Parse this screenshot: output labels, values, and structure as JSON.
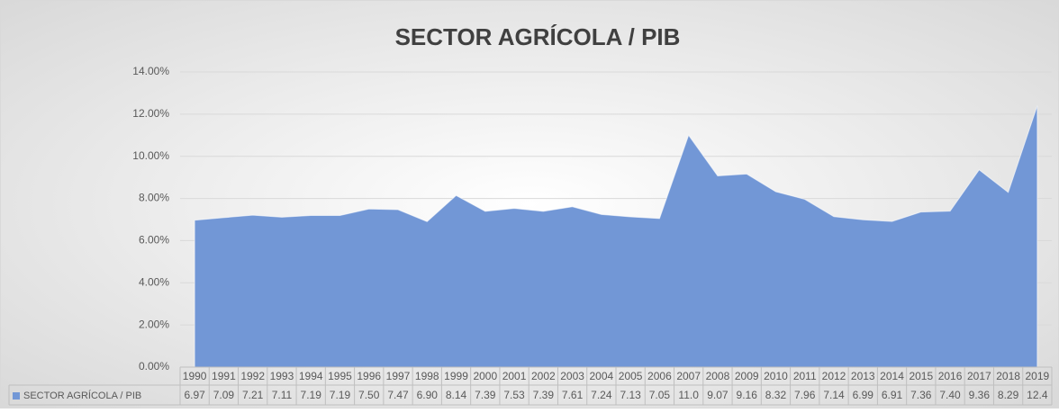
{
  "chart_data": {
    "type": "area",
    "title": "SECTOR AGRÍCOLA / PIB",
    "categories": [
      "1990",
      "1991",
      "1992",
      "1993",
      "1994",
      "1995",
      "1996",
      "1997",
      "1998",
      "1999",
      "2000",
      "2001",
      "2002",
      "2003",
      "2004",
      "2005",
      "2006",
      "2007",
      "2008",
      "2009",
      "2010",
      "2011",
      "2012",
      "2013",
      "2014",
      "2015",
      "2016",
      "2017",
      "2018",
      "2019"
    ],
    "series": [
      {
        "name": "SECTOR AGRÍCOLA / PIB",
        "color": "#7297d6",
        "values": [
          6.97,
          7.09,
          7.21,
          7.11,
          7.19,
          7.19,
          7.5,
          7.47,
          6.9,
          8.14,
          7.39,
          7.53,
          7.39,
          7.61,
          7.24,
          7.13,
          7.05,
          11.0,
          9.07,
          9.16,
          8.32,
          7.96,
          7.14,
          6.99,
          6.91,
          7.36,
          7.4,
          9.36,
          8.29,
          12.4
        ],
        "value_labels": [
          "6.97",
          "7.09",
          "7.21",
          "7.11",
          "7.19",
          "7.19",
          "7.50",
          "7.47",
          "6.90",
          "8.14",
          "7.39",
          "7.53",
          "7.39",
          "7.61",
          "7.24",
          "7.13",
          "7.05",
          "11.0",
          "9.07",
          "9.16",
          "8.32",
          "7.96",
          "7.14",
          "6.99",
          "6.91",
          "7.36",
          "7.40",
          "9.36",
          "8.29",
          "12.4"
        ]
      }
    ],
    "ylim": [
      0,
      14
    ],
    "yticks": [
      {
        "value": 0,
        "label": "0.00%"
      },
      {
        "value": 2,
        "label": "2.00%"
      },
      {
        "value": 4,
        "label": "4.00%"
      },
      {
        "value": 6,
        "label": "6.00%"
      },
      {
        "value": 8,
        "label": "8.00%"
      },
      {
        "value": 10,
        "label": "10.00%"
      },
      {
        "value": 12,
        "label": "12.00%"
      },
      {
        "value": 14,
        "label": "14.00%"
      }
    ],
    "grid": true,
    "data_table": true
  }
}
